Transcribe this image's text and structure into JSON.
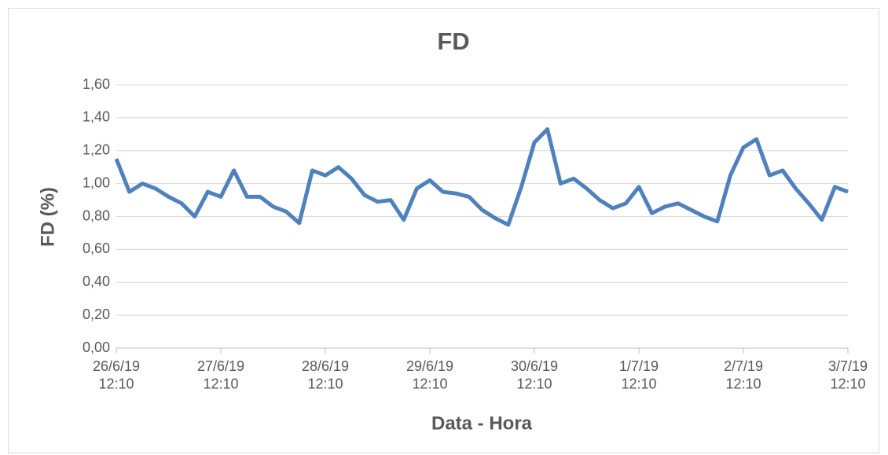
{
  "chart_data": {
    "type": "line",
    "title": "FD",
    "x_label": "Data - Hora",
    "y_label": "FD (%)",
    "x": [
      "2019-06-26T12:10",
      "2019-06-26T15:10",
      "2019-06-26T18:10",
      "2019-06-26T21:10",
      "2019-06-27T00:10",
      "2019-06-27T03:10",
      "2019-06-27T06:10",
      "2019-06-27T09:10",
      "2019-06-27T12:10",
      "2019-06-27T15:10",
      "2019-06-27T18:10",
      "2019-06-27T21:10",
      "2019-06-28T00:10",
      "2019-06-28T03:10",
      "2019-06-28T06:10",
      "2019-06-28T09:10",
      "2019-06-28T12:10",
      "2019-06-28T15:10",
      "2019-06-28T18:10",
      "2019-06-28T21:10",
      "2019-06-29T00:10",
      "2019-06-29T03:10",
      "2019-06-29T06:10",
      "2019-06-29T09:10",
      "2019-06-29T12:10",
      "2019-06-29T15:10",
      "2019-06-29T18:10",
      "2019-06-29T21:10",
      "2019-06-30T00:10",
      "2019-06-30T03:10",
      "2019-06-30T06:10",
      "2019-06-30T09:10",
      "2019-06-30T12:10",
      "2019-06-30T15:10",
      "2019-06-30T18:10",
      "2019-06-30T21:10",
      "2019-07-01T00:10",
      "2019-07-01T03:10",
      "2019-07-01T06:10",
      "2019-07-01T09:10",
      "2019-07-01T12:10",
      "2019-07-01T15:10",
      "2019-07-01T18:10",
      "2019-07-01T21:10",
      "2019-07-02T00:10",
      "2019-07-02T03:10",
      "2019-07-02T06:10",
      "2019-07-02T09:10",
      "2019-07-02T12:10",
      "2019-07-02T15:10",
      "2019-07-02T18:10",
      "2019-07-02T21:10",
      "2019-07-03T00:10",
      "2019-07-03T03:10",
      "2019-07-03T06:10",
      "2019-07-03T09:10",
      "2019-07-03T12:10"
    ],
    "series": [
      {
        "name": "FD",
        "color": "#4f81bd",
        "values": [
          1.15,
          0.95,
          1.0,
          0.97,
          0.92,
          0.88,
          0.8,
          0.95,
          0.92,
          1.08,
          0.92,
          0.92,
          0.86,
          0.83,
          0.76,
          1.08,
          1.05,
          1.1,
          1.03,
          0.93,
          0.89,
          0.9,
          0.78,
          0.97,
          1.02,
          0.95,
          0.94,
          0.92,
          0.84,
          0.79,
          0.75,
          0.98,
          1.25,
          1.33,
          1.0,
          1.03,
          0.97,
          0.9,
          0.85,
          0.88,
          0.98,
          0.82,
          0.86,
          0.88,
          0.84,
          0.8,
          0.77,
          1.05,
          1.22,
          1.27,
          1.05,
          1.08,
          0.97,
          0.88,
          0.78,
          0.98,
          0.95
        ]
      }
    ],
    "xlim": [
      "2019-06-26T12:10",
      "2019-07-03T12:10"
    ],
    "xticks": [
      {
        "value": "2019-06-26T12:10",
        "label": "26/6/19\n12:10"
      },
      {
        "value": "2019-06-27T12:10",
        "label": "27/6/19\n12:10"
      },
      {
        "value": "2019-06-28T12:10",
        "label": "28/6/19\n12:10"
      },
      {
        "value": "2019-06-29T12:10",
        "label": "29/6/19\n12:10"
      },
      {
        "value": "2019-06-30T12:10",
        "label": "30/6/19\n12:10"
      },
      {
        "value": "2019-07-01T12:10",
        "label": "1/7/19\n12:10"
      },
      {
        "value": "2019-07-02T12:10",
        "label": "2/7/19\n12:10"
      },
      {
        "value": "2019-07-03T12:10",
        "label": "3/7/19\n12:10"
      }
    ],
    "ylim": [
      0,
      1.6
    ],
    "yticks": [
      {
        "value": 0,
        "label": "0,00"
      },
      {
        "value": 0.2,
        "label": "0,20"
      },
      {
        "value": 0.4,
        "label": "0,40"
      },
      {
        "value": 0.6,
        "label": "0,60"
      },
      {
        "value": 0.8,
        "label": "0,80"
      },
      {
        "value": 1.0,
        "label": "1,00"
      },
      {
        "value": 1.2,
        "label": "1,20"
      },
      {
        "value": 1.4,
        "label": "1,40"
      },
      {
        "value": 1.6,
        "label": "1,60"
      }
    ],
    "grid": true
  }
}
